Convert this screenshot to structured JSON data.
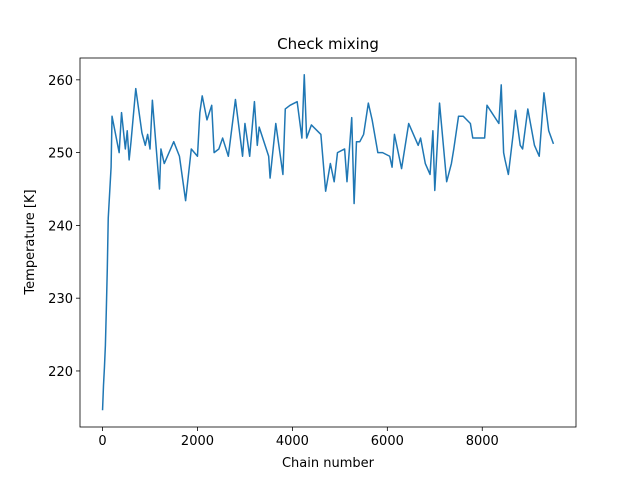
{
  "chart_data": {
    "type": "line",
    "title": "Check mixing",
    "xlabel": "Chain number",
    "ylabel": "Temperature [K]",
    "x": [
      0,
      20,
      40,
      60,
      80,
      100,
      120,
      180,
      200,
      350,
      400,
      480,
      520,
      560,
      600,
      700,
      830,
      900,
      950,
      1000,
      1050,
      1200,
      1230,
      1300,
      1400,
      1500,
      1620,
      1750,
      1870,
      2000,
      2050,
      2100,
      2200,
      2300,
      2350,
      2450,
      2530,
      2650,
      2800,
      2950,
      3000,
      3100,
      3200,
      3260,
      3300,
      3500,
      3530,
      3650,
      3800,
      3850,
      3950,
      4100,
      4200,
      4250,
      4300,
      4400,
      4600,
      4700,
      4800,
      4880,
      4950,
      5100,
      5150,
      5250,
      5300,
      5350,
      5420,
      5500,
      5600,
      5680,
      5800,
      5900,
      6050,
      6100,
      6150,
      6300,
      6450,
      6650,
      6700,
      6800,
      6900,
      6960,
      7000,
      7100,
      7250,
      7350,
      7400,
      7500,
      7600,
      7750,
      7800,
      8050,
      8100,
      8350,
      8400,
      8450,
      8480,
      8550,
      8650,
      8700,
      8800,
      8850,
      8960,
      9100,
      9200,
      9300,
      9400,
      9500
    ],
    "series": [
      {
        "color": "#1f77b4",
        "values": [
          214.6,
          218,
          220.5,
          223.5,
          228.5,
          234,
          241,
          248,
          255,
          250,
          255.5,
          250.5,
          253,
          249,
          251.5,
          258.8,
          252.7,
          251,
          252.5,
          250.5,
          257.2,
          245,
          250.5,
          248.5,
          250,
          251.5,
          249.5,
          243.4,
          250.5,
          249.5,
          255.5,
          257.8,
          254.5,
          256.5,
          250,
          250.5,
          252,
          249.5,
          257.3,
          249.5,
          254,
          249.5,
          257,
          251,
          253.5,
          249.5,
          246.5,
          254,
          247,
          256,
          256.5,
          257,
          252,
          260.7,
          252,
          253.8,
          252.5,
          244.7,
          248.5,
          246,
          250,
          250.5,
          246,
          254.8,
          243,
          251.5,
          251.5,
          252.5,
          256.8,
          254.5,
          250,
          250,
          249.5,
          248,
          252.5,
          247.8,
          254,
          251,
          252,
          248.5,
          247,
          253,
          244.8,
          256.8,
          246,
          248.5,
          250.5,
          255,
          255,
          254,
          252,
          252,
          256.5,
          254,
          259.3,
          250,
          249,
          247,
          252.5,
          255.8,
          251,
          250.5,
          256,
          251,
          249.5,
          258.2,
          253,
          251.2
        ]
      }
    ],
    "xlim": [
      -475,
      9975
    ],
    "ylim": [
      212.3,
      263.0
    ],
    "xticks": [
      0,
      2000,
      4000,
      6000,
      8000
    ],
    "yticks": [
      220,
      230,
      240,
      250,
      260
    ]
  }
}
